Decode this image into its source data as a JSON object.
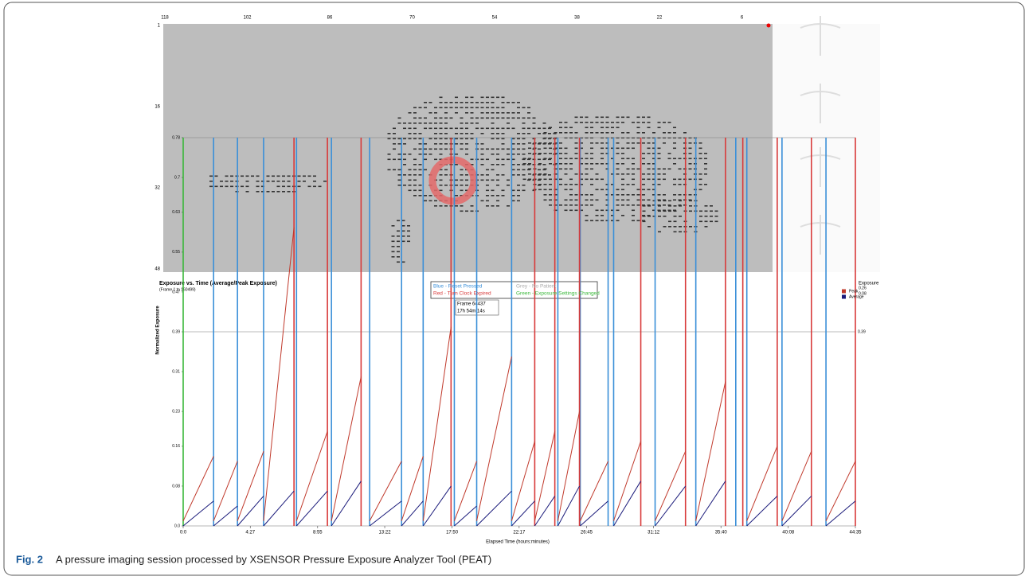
{
  "pressure_map": {
    "x_labels": [
      118,
      102,
      86,
      70,
      54,
      38,
      22,
      6
    ],
    "y_labels": [
      1,
      16,
      32,
      48
    ]
  },
  "chart_data": {
    "type": "line",
    "title": "Exposure vs. Time (Average/Peak Exposure)",
    "subtitle": "(Frame 1 to 160499)",
    "y_label": "Normalized Exposure",
    "x_label": "Elapsed Time (hours:minutes)",
    "event_legend": [
      "Blue - Reset Pressed",
      "Red - Turn Clock Expired",
      "Grey - No Patient",
      "Green - Exposure Settings Changed"
    ],
    "tooltip": [
      "Frame 64437",
      "17h 54m 14s"
    ],
    "exposure_header": "Exposure",
    "threshold": {
      "value": 0.39,
      "label": "0.39"
    },
    "xlim": [
      0,
      2675
    ],
    "ylim": [
      0,
      0.78
    ],
    "xticks": [
      {
        "value": 0,
        "label": "0:0"
      },
      {
        "value": 267,
        "label": "4:27"
      },
      {
        "value": 535,
        "label": "8:55"
      },
      {
        "value": 802,
        "label": "13:22"
      },
      {
        "value": 1070,
        "label": "17:50"
      },
      {
        "value": 1337,
        "label": "22:17"
      },
      {
        "value": 1605,
        "label": "26:45"
      },
      {
        "value": 1872,
        "label": "31:12"
      },
      {
        "value": 2140,
        "label": "35:40"
      },
      {
        "value": 2408,
        "label": "40:08"
      },
      {
        "value": 2675,
        "label": "44:35"
      }
    ],
    "yticks": [
      {
        "value": 0,
        "label": "0.0"
      },
      0.08,
      0.16,
      0.23,
      0.31,
      0.39,
      0.47,
      0.55,
      0.63,
      0.7,
      0.78
    ],
    "resets": {
      "color": "#3a8fd8",
      "x": [
        121,
        216,
        320,
        451,
        590,
        742,
        869,
        955,
        1079,
        1168,
        1307,
        1491,
        1580,
        1691,
        1713,
        1878,
        2040,
        2199,
        2243,
        2383,
        2558
      ]
    },
    "expired": {
      "color": "#d83a3a",
      "x": [
        441,
        574,
        708,
        1066,
        1399,
        1479,
        1577,
        1821,
        1999,
        2158,
        2227,
        2364,
        2500,
        2675
      ]
    },
    "settings_changed": {
      "color": "#3ab83a",
      "x": [
        0
      ]
    },
    "x": [
      0,
      121,
      121,
      121,
      216,
      216,
      216,
      320,
      320,
      320,
      441,
      441,
      451,
      574,
      574,
      590,
      708,
      708,
      742,
      869,
      869,
      869,
      955,
      955,
      955,
      1066,
      1066,
      1079,
      1168,
      1168,
      1168,
      1307,
      1307,
      1307,
      1399,
      1399,
      1399,
      1479,
      1479,
      1491,
      1577,
      1577,
      1580,
      1691,
      1691,
      1713,
      1821,
      1821,
      1878,
      1999,
      1999,
      2040,
      2158,
      2158,
      2243,
      2364,
      2364,
      2383,
      2500,
      2500,
      2558,
      2675
    ],
    "series": [
      {
        "name": "Peak",
        "color": "#c0392b",
        "current": "0.26",
        "values": [
          0.01,
          0.14,
          null,
          0.01,
          0.13,
          null,
          0.01,
          0.15,
          null,
          0.01,
          0.6,
          null,
          0.01,
          0.19,
          null,
          0.01,
          0.3,
          null,
          0.01,
          0.13,
          null,
          0.01,
          0.14,
          null,
          0.01,
          0.4,
          null,
          0.01,
          0.13,
          null,
          0.01,
          0.34,
          null,
          0.01,
          0.17,
          null,
          0.01,
          0.19,
          null,
          0.01,
          0.23,
          null,
          0.01,
          0.13,
          null,
          0.01,
          0.17,
          null,
          0.01,
          0.15,
          null,
          0.01,
          0.29,
          null,
          0.01,
          0.16,
          null,
          0.01,
          0.15,
          null,
          0.01,
          0.13
        ]
      },
      {
        "name": "Average",
        "color": "#1a1a7a",
        "current": "0.08",
        "values": [
          0,
          0.05,
          null,
          0,
          0.04,
          null,
          0,
          0.06,
          null,
          0,
          0.07,
          null,
          0,
          0.07,
          null,
          0,
          0.09,
          null,
          0,
          0.05,
          null,
          0,
          0.05,
          null,
          0,
          0.08,
          null,
          0,
          0.04,
          null,
          0,
          0.07,
          null,
          0,
          0.05,
          null,
          0,
          0.06,
          null,
          0,
          0.08,
          null,
          0,
          0.05,
          null,
          0,
          0.09,
          null,
          0,
          0.08,
          null,
          0,
          0.09,
          null,
          0,
          0.06,
          null,
          0,
          0.06,
          null,
          0,
          0.05
        ]
      }
    ]
  },
  "caption": {
    "label": "Fig. 2",
    "text": "A pressure imaging session processed by XSENSOR Pressure Exposure Analyzer Tool (PEAT)"
  }
}
